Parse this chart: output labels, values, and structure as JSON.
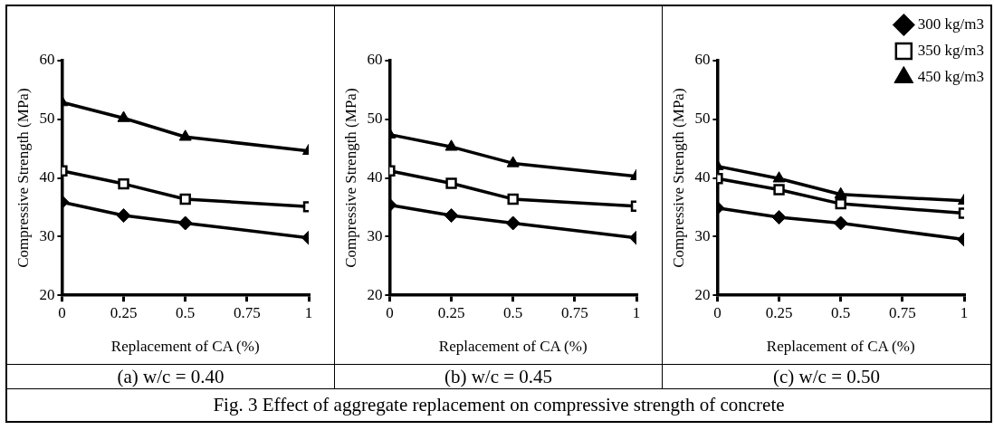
{
  "chart_data": [
    {
      "type": "line",
      "title": "(a) w/c = 0.40",
      "xlabel": "Replacement of CA (%)",
      "ylabel": "Compressive Strength (MPa)",
      "annotations": [
        "Fig. 3 Effect of aggregate replacement on compressive strength of concrete"
      ],
      "x": [
        0,
        0.25,
        0.5,
        1
      ],
      "xlim": [
        0,
        1
      ],
      "xticks": [
        0,
        0.25,
        0.5,
        0.75,
        1
      ],
      "ylim": [
        20,
        60
      ],
      "yticks": [
        20,
        30,
        40,
        50,
        60
      ],
      "grid": false,
      "legend": false,
      "line_style": "solid",
      "series": [
        {
          "color": "#000000",
          "marker": "diamond",
          "values": [
            35.9,
            33.6,
            32.3,
            29.8
          ]
        },
        {
          "color": "#000000",
          "marker": "square",
          "values": [
            41.2,
            39.0,
            36.4,
            35.1
          ]
        },
        {
          "color": "#000000",
          "marker": "triangle",
          "values": [
            52.9,
            50.2,
            47.0,
            44.6
          ]
        }
      ]
    },
    {
      "type": "line",
      "title": "(b) w/c = 0.45",
      "xlabel": "Replacement of CA (%)",
      "ylabel": "Compressive Strength (MPa)",
      "x": [
        0,
        0.25,
        0.5,
        1
      ],
      "xlim": [
        0,
        1
      ],
      "xticks": [
        0,
        0.25,
        0.5,
        0.75,
        1
      ],
      "ylim": [
        20,
        60
      ],
      "yticks": [
        20,
        30,
        40,
        50,
        60
      ],
      "grid": false,
      "legend": false,
      "line_style": "solid",
      "series": [
        {
          "color": "#000000",
          "marker": "diamond",
          "values": [
            35.4,
            33.6,
            32.3,
            29.8
          ]
        },
        {
          "color": "#000000",
          "marker": "square",
          "values": [
            41.2,
            39.1,
            36.4,
            35.2
          ]
        },
        {
          "color": "#000000",
          "marker": "triangle",
          "values": [
            47.4,
            45.3,
            42.5,
            40.3
          ]
        }
      ]
    },
    {
      "type": "line",
      "title": "(c) w/c = 0.50",
      "xlabel": "Replacement of CA (%)",
      "ylabel": "Compressive Strength (MPa)",
      "x": [
        0,
        0.25,
        0.5,
        1
      ],
      "xlim": [
        0,
        1
      ],
      "xticks": [
        0,
        0.25,
        0.5,
        0.75,
        1
      ],
      "ylim": [
        20,
        60
      ],
      "yticks": [
        20,
        30,
        40,
        50,
        60
      ],
      "grid": false,
      "legend": "top right",
      "line_style": "solid",
      "series": [
        {
          "name": "300 kg/m3",
          "color": "#000000",
          "marker": "diamond",
          "values": [
            34.9,
            33.3,
            32.3,
            29.5
          ]
        },
        {
          "name": "350 kg/m3",
          "color": "#000000",
          "marker": "square",
          "values": [
            39.9,
            38.0,
            35.6,
            34.0
          ]
        },
        {
          "name": "450 kg/m3",
          "color": "#000000",
          "marker": "triangle",
          "values": [
            42.0,
            39.9,
            37.2,
            36.1
          ]
        }
      ]
    }
  ]
}
